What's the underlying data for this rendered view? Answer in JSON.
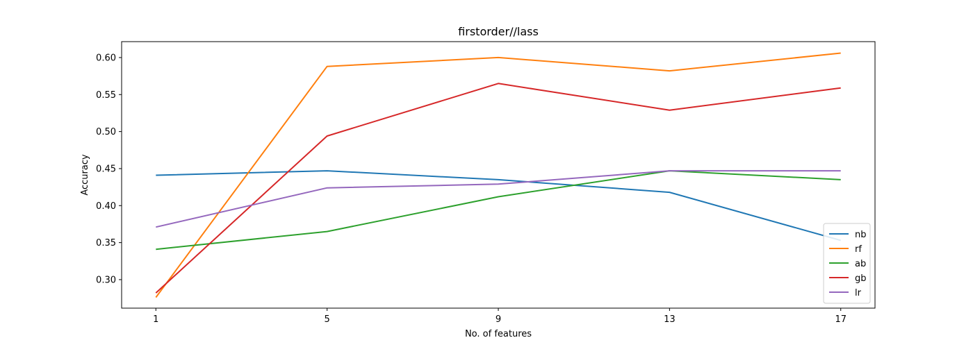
{
  "chart_data": {
    "type": "line",
    "title": "firstorder//lass",
    "xlabel": "No. of features",
    "ylabel": "Accuracy",
    "x": [
      1,
      5,
      9,
      13,
      17
    ],
    "xticks": [
      "1",
      "5",
      "9",
      "13",
      "17"
    ],
    "xlim": [
      0.2,
      17.8
    ],
    "ylim": [
      0.2615,
      0.6215
    ],
    "yticks": [
      "0.30",
      "0.35",
      "0.40",
      "0.45",
      "0.50",
      "0.55",
      "0.60"
    ],
    "ytick_values": [
      0.3,
      0.35,
      0.4,
      0.45,
      0.5,
      0.55,
      0.6
    ],
    "grid": false,
    "legend_position": "lower-right",
    "series": [
      {
        "name": "nb",
        "color": "#1f77b4",
        "values": [
          0.441,
          0.447,
          0.435,
          0.418,
          0.353
        ]
      },
      {
        "name": "rf",
        "color": "#ff7f0e",
        "values": [
          0.276,
          0.588,
          0.6,
          0.582,
          0.606
        ]
      },
      {
        "name": "ab",
        "color": "#2ca02c",
        "values": [
          0.341,
          0.365,
          0.412,
          0.447,
          0.435
        ]
      },
      {
        "name": "gb",
        "color": "#d62728",
        "values": [
          0.282,
          0.494,
          0.565,
          0.529,
          0.559
        ]
      },
      {
        "name": "lr",
        "color": "#9467bd",
        "values": [
          0.371,
          0.424,
          0.429,
          0.447,
          0.447
        ]
      }
    ]
  }
}
